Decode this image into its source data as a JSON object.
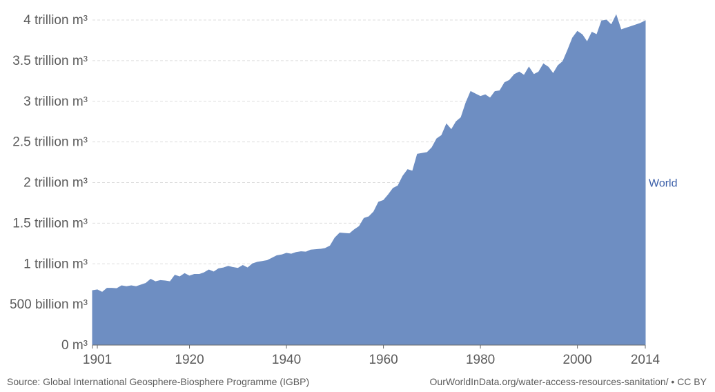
{
  "chart_data": {
    "type": "area",
    "x": [
      1900,
      1901,
      1902,
      1903,
      1904,
      1905,
      1906,
      1907,
      1908,
      1909,
      1910,
      1911,
      1912,
      1913,
      1914,
      1915,
      1916,
      1917,
      1918,
      1919,
      1920,
      1921,
      1922,
      1923,
      1924,
      1925,
      1926,
      1927,
      1928,
      1929,
      1930,
      1931,
      1932,
      1933,
      1934,
      1935,
      1936,
      1937,
      1938,
      1939,
      1940,
      1941,
      1942,
      1943,
      1944,
      1945,
      1946,
      1947,
      1948,
      1949,
      1950,
      1951,
      1952,
      1953,
      1954,
      1955,
      1956,
      1957,
      1958,
      1959,
      1960,
      1961,
      1962,
      1963,
      1964,
      1965,
      1966,
      1967,
      1968,
      1969,
      1970,
      1971,
      1972,
      1973,
      1974,
      1975,
      1976,
      1977,
      1978,
      1979,
      1980,
      1981,
      1982,
      1983,
      1984,
      1985,
      1986,
      1987,
      1988,
      1989,
      1990,
      1991,
      1992,
      1993,
      1994,
      1995,
      1996,
      1997,
      1998,
      1999,
      2000,
      2001,
      2002,
      2003,
      2004,
      2005,
      2006,
      2007,
      2008,
      2009,
      2010,
      2011,
      2012,
      2013,
      2014
    ],
    "series": [
      {
        "name": "World",
        "color": "#6e8ec2",
        "label_color": "#3a5ea8",
        "values": [
          670,
          680,
          650,
          700,
          700,
          695,
          730,
          720,
          730,
          720,
          740,
          760,
          810,
          780,
          795,
          790,
          780,
          860,
          840,
          880,
          850,
          870,
          870,
          890,
          925,
          900,
          940,
          950,
          970,
          955,
          945,
          980,
          950,
          1000,
          1020,
          1030,
          1040,
          1070,
          1100,
          1110,
          1130,
          1120,
          1140,
          1150,
          1145,
          1170,
          1175,
          1180,
          1190,
          1220,
          1320,
          1380,
          1375,
          1370,
          1420,
          1460,
          1560,
          1580,
          1640,
          1760,
          1780,
          1850,
          1930,
          1960,
          2080,
          2160,
          2140,
          2350,
          2360,
          2370,
          2430,
          2540,
          2580,
          2720,
          2650,
          2750,
          2800,
          2980,
          3120,
          3090,
          3060,
          3080,
          3040,
          3120,
          3130,
          3230,
          3260,
          3330,
          3360,
          3320,
          3420,
          3330,
          3360,
          3460,
          3420,
          3340,
          3440,
          3490,
          3630,
          3780,
          3860,
          3820,
          3730,
          3850,
          3820,
          3990,
          4000,
          3940,
          4060,
          3880,
          3900,
          3920,
          3940,
          3960,
          3990
        ]
      }
    ],
    "y_ticks": [
      0,
      500,
      1000,
      1500,
      2000,
      2500,
      3000,
      3500,
      4000
    ],
    "y_tick_labels": [
      "0 m³",
      "500 billion m³",
      "1 trillion m³",
      "1.5 trillion m³",
      "2 trillion m³",
      "2.5 trillion m³",
      "3 trillion m³",
      "3.5 trillion m³",
      "4 trillion m³"
    ],
    "x_ticks": [
      1901,
      1920,
      1940,
      1960,
      1980,
      2000,
      2014
    ],
    "x_tick_labels": [
      "1901",
      "1920",
      "1940",
      "1960",
      "1980",
      "2000",
      "2014"
    ],
    "xlim": [
      1900,
      2014
    ],
    "ylim": [
      0,
      4000
    ],
    "grid": "horizontal dashed",
    "legend": "right"
  },
  "footer": {
    "source": "Source: Global International Geosphere-Biosphere Programme (IGBP)",
    "url": "OurWorldInData.org/water-access-resources-sanitation/ • CC BY"
  }
}
